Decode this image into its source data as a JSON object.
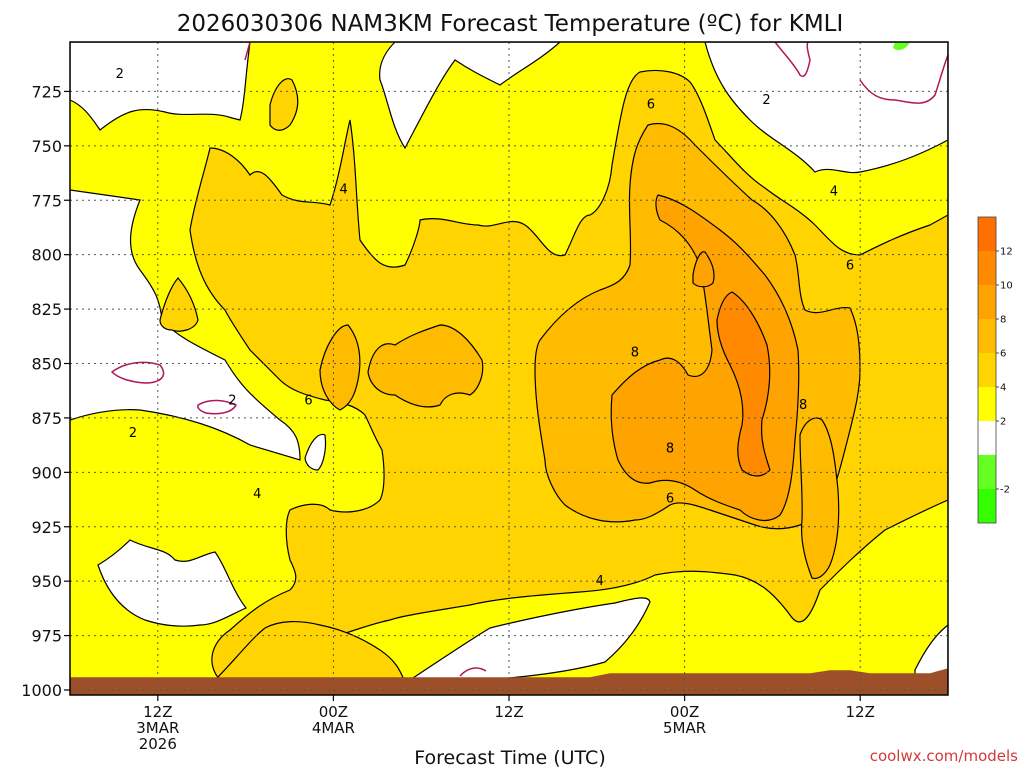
{
  "chart_data": {
    "type": "heatmap",
    "title": "2026030306 NAM3KM Forecast Temperature (ºC) for KMLI",
    "xlabel": "Forecast Time (UTC)",
    "ylabel": "",
    "credit": "coolwx.com/models",
    "y_axis": {
      "ticks": [
        "725",
        "750",
        "775",
        "800",
        "825",
        "850",
        "875",
        "900",
        "925",
        "950",
        "975",
        "1000"
      ],
      "ylim": [
        1000,
        700
      ],
      "unit": "pressure level"
    },
    "x_axis": {
      "ticks": [
        {
          "line1": "12Z",
          "line2": "3MAR",
          "line3": "2026",
          "hours": 6
        },
        {
          "line1": "00Z",
          "line2": "4MAR",
          "line3": "",
          "hours": 18
        },
        {
          "line1": "12Z",
          "line2": "",
          "line3": "",
          "hours": 30
        },
        {
          "line1": "00Z",
          "line2": "5MAR",
          "line3": "",
          "hours": 42
        },
        {
          "line1": "12Z",
          "line2": "",
          "line3": "",
          "hours": 54
        }
      ],
      "xlim": [
        0,
        60
      ]
    },
    "grid": true,
    "colorbar": {
      "placement": "right",
      "bands": [
        {
          "from": -4,
          "to": -2,
          "color": "#33ff00"
        },
        {
          "from": -2,
          "to": 0,
          "color": "#66ff22"
        },
        {
          "from": 0,
          "to": 2,
          "color": "#ffffff"
        },
        {
          "from": 2,
          "to": 4,
          "color": "#ffff00"
        },
        {
          "from": 4,
          "to": 6,
          "color": "#ffd400"
        },
        {
          "from": 6,
          "to": 8,
          "color": "#ffbb00"
        },
        {
          "from": 8,
          "to": 10,
          "color": "#ffa300"
        },
        {
          "from": 10,
          "to": 12,
          "color": "#ff8a00"
        },
        {
          "from": 12,
          "to": 14,
          "color": "#ff7000"
        }
      ],
      "labels": [
        "-2",
        "2",
        "4",
        "6",
        "8",
        "10",
        "12"
      ]
    },
    "contour_labels": [
      {
        "text": "2",
        "hours": 3.4,
        "level": 717
      },
      {
        "text": "2",
        "hours": 4.3,
        "level": 882
      },
      {
        "text": "2",
        "hours": 11.1,
        "level": 867
      },
      {
        "text": "6",
        "hours": 16.3,
        "level": 867
      },
      {
        "text": "4",
        "hours": 18.7,
        "level": 770
      },
      {
        "text": "4",
        "hours": 12.8,
        "level": 910
      },
      {
        "text": "8",
        "hours": 38.6,
        "level": 845
      },
      {
        "text": "8",
        "hours": 41.0,
        "level": 889
      },
      {
        "text": "6",
        "hours": 41.0,
        "level": 912
      },
      {
        "text": "4",
        "hours": 36.2,
        "level": 950
      },
      {
        "text": "6",
        "hours": 39.7,
        "level": 731
      },
      {
        "text": "2",
        "hours": 47.6,
        "level": 729
      },
      {
        "text": "4",
        "hours": 52.2,
        "level": 771
      },
      {
        "text": "6",
        "hours": 53.3,
        "level": 805
      },
      {
        "text": "8",
        "hours": 50.1,
        "level": 869
      }
    ],
    "terrain_level": 990
  }
}
